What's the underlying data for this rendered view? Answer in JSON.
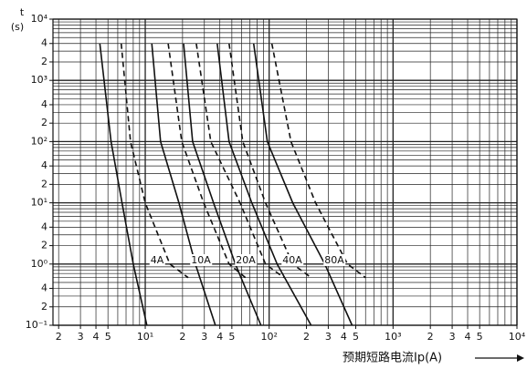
{
  "chart_data": {
    "type": "line",
    "y_label_top": "t",
    "y_label": "(s)",
    "x_label": "预期短路电流Ip(A)",
    "log_x": true,
    "log_y": true,
    "xlim": [
      1.8,
      10000
    ],
    "ylim": [
      0.1,
      10000
    ],
    "xticks": [
      2,
      3,
      4,
      5,
      {
        "value": 10,
        "label": "10¹"
      },
      {
        "value": 20,
        "label": "2"
      },
      {
        "value": 30,
        "label": "3"
      },
      {
        "value": 40,
        "label": "4"
      },
      {
        "value": 50,
        "label": "5"
      },
      {
        "value": 100,
        "label": "10²"
      },
      {
        "value": 200,
        "label": "2"
      },
      {
        "value": 300,
        "label": "3"
      },
      {
        "value": 400,
        "label": "4"
      },
      {
        "value": 500,
        "label": "5"
      },
      {
        "value": 1000,
        "label": "10³"
      },
      {
        "value": 2000,
        "label": "2"
      },
      {
        "value": 3000,
        "label": "3"
      },
      {
        "value": 4000,
        "label": "4"
      },
      {
        "value": 5000,
        "label": "5"
      },
      {
        "value": 10000,
        "label": "10⁴"
      }
    ],
    "yticks": [
      {
        "value": 10000,
        "label": "10⁴"
      },
      {
        "value": 4000,
        "label": "4"
      },
      {
        "value": 2000,
        "label": "2"
      },
      {
        "value": 1000,
        "label": "10³"
      },
      {
        "value": 400,
        "label": "4"
      },
      {
        "value": 200,
        "label": "2"
      },
      {
        "value": 100,
        "label": "10²"
      },
      {
        "value": 40,
        "label": "4"
      },
      {
        "value": 20,
        "label": "2"
      },
      {
        "value": 10,
        "label": "10¹"
      },
      4,
      2,
      {
        "value": 1,
        "label": "10⁰"
      },
      {
        "value": 0.4,
        "label": "4"
      },
      {
        "value": 0.2,
        "label": "2"
      },
      {
        "value": 0.1,
        "label": "10⁻¹"
      }
    ],
    "grid": true,
    "xgrid": [
      2,
      3,
      4,
      5,
      6,
      7,
      8,
      9,
      10,
      20,
      30,
      40,
      50,
      60,
      70,
      80,
      90,
      100,
      200,
      300,
      400,
      500,
      600,
      700,
      800,
      900,
      1000,
      2000,
      3000,
      4000,
      5000,
      6000,
      7000,
      8000,
      9000,
      10000
    ],
    "ygrid": [
      0.1,
      0.2,
      0.3,
      0.4,
      0.5,
      0.6,
      0.7,
      0.8,
      0.9,
      1,
      2,
      3,
      4,
      5,
      6,
      7,
      8,
      9,
      10,
      20,
      30,
      40,
      50,
      60,
      70,
      80,
      90,
      100,
      200,
      300,
      400,
      500,
      600,
      700,
      800,
      900,
      1000,
      2000,
      3000,
      4000,
      5000,
      6000,
      7000,
      8000,
      9000,
      10000
    ],
    "annotations": [
      "4A",
      "10A",
      "20A",
      "40A",
      "80A"
    ],
    "series": [
      {
        "color": "#111",
        "style": "solid",
        "x": [
          4.3,
          5.3,
          6.5,
          8.0,
          10.3
        ],
        "values": [
          4000,
          100,
          10,
          1,
          0.1
        ]
      },
      {
        "color": "#111",
        "style": "dashed",
        "x": [
          6.4,
          7.6,
          10,
          15.8,
          22.2
        ],
        "values": [
          4000,
          100,
          10,
          1,
          0.6
        ]
      },
      {
        "color": "#111",
        "style": "solid",
        "x": [
          11.3,
          13.3,
          18.7,
          25.4,
          36.8
        ],
        "values": [
          4000,
          100,
          10,
          1,
          0.1
        ]
      },
      {
        "color": "#111",
        "style": "dashed",
        "x": [
          15.3,
          19.7,
          29.6,
          47.5,
          64.4
        ],
        "values": [
          4000,
          100,
          10,
          1,
          0.6
        ]
      },
      {
        "color": "#111",
        "style": "solid",
        "x": [
          20.4,
          24.1,
          35.6,
          53.4,
          85.9
        ],
        "values": [
          4000,
          100,
          10,
          1,
          0.1
        ]
      },
      {
        "color": "#111",
        "style": "dashed",
        "x": [
          25.8,
          33.8,
          58.2,
          93.5,
          131
        ],
        "values": [
          4000,
          100,
          10,
          1,
          0.6
        ]
      },
      {
        "color": "#111",
        "style": "solid",
        "x": [
          38.1,
          47.5,
          72.5,
          116,
          218
        ],
        "values": [
          4000,
          100,
          10,
          1,
          0.1
        ]
      },
      {
        "color": "#111",
        "style": "dashed",
        "x": [
          47.5,
          61.2,
          93.5,
          155,
          218
        ],
        "values": [
          4000,
          100,
          10,
          1,
          0.6
        ]
      },
      {
        "color": "#111",
        "style": "solid",
        "x": [
          75,
          96.7,
          155,
          281,
          467
        ],
        "values": [
          4000,
          100,
          10,
          1,
          0.1
        ]
      },
      {
        "color": "#111",
        "style": "dashed",
        "x": [
          105,
          150,
          237,
          429,
          601
        ],
        "values": [
          4000,
          100,
          10,
          1,
          0.6
        ]
      }
    ]
  }
}
